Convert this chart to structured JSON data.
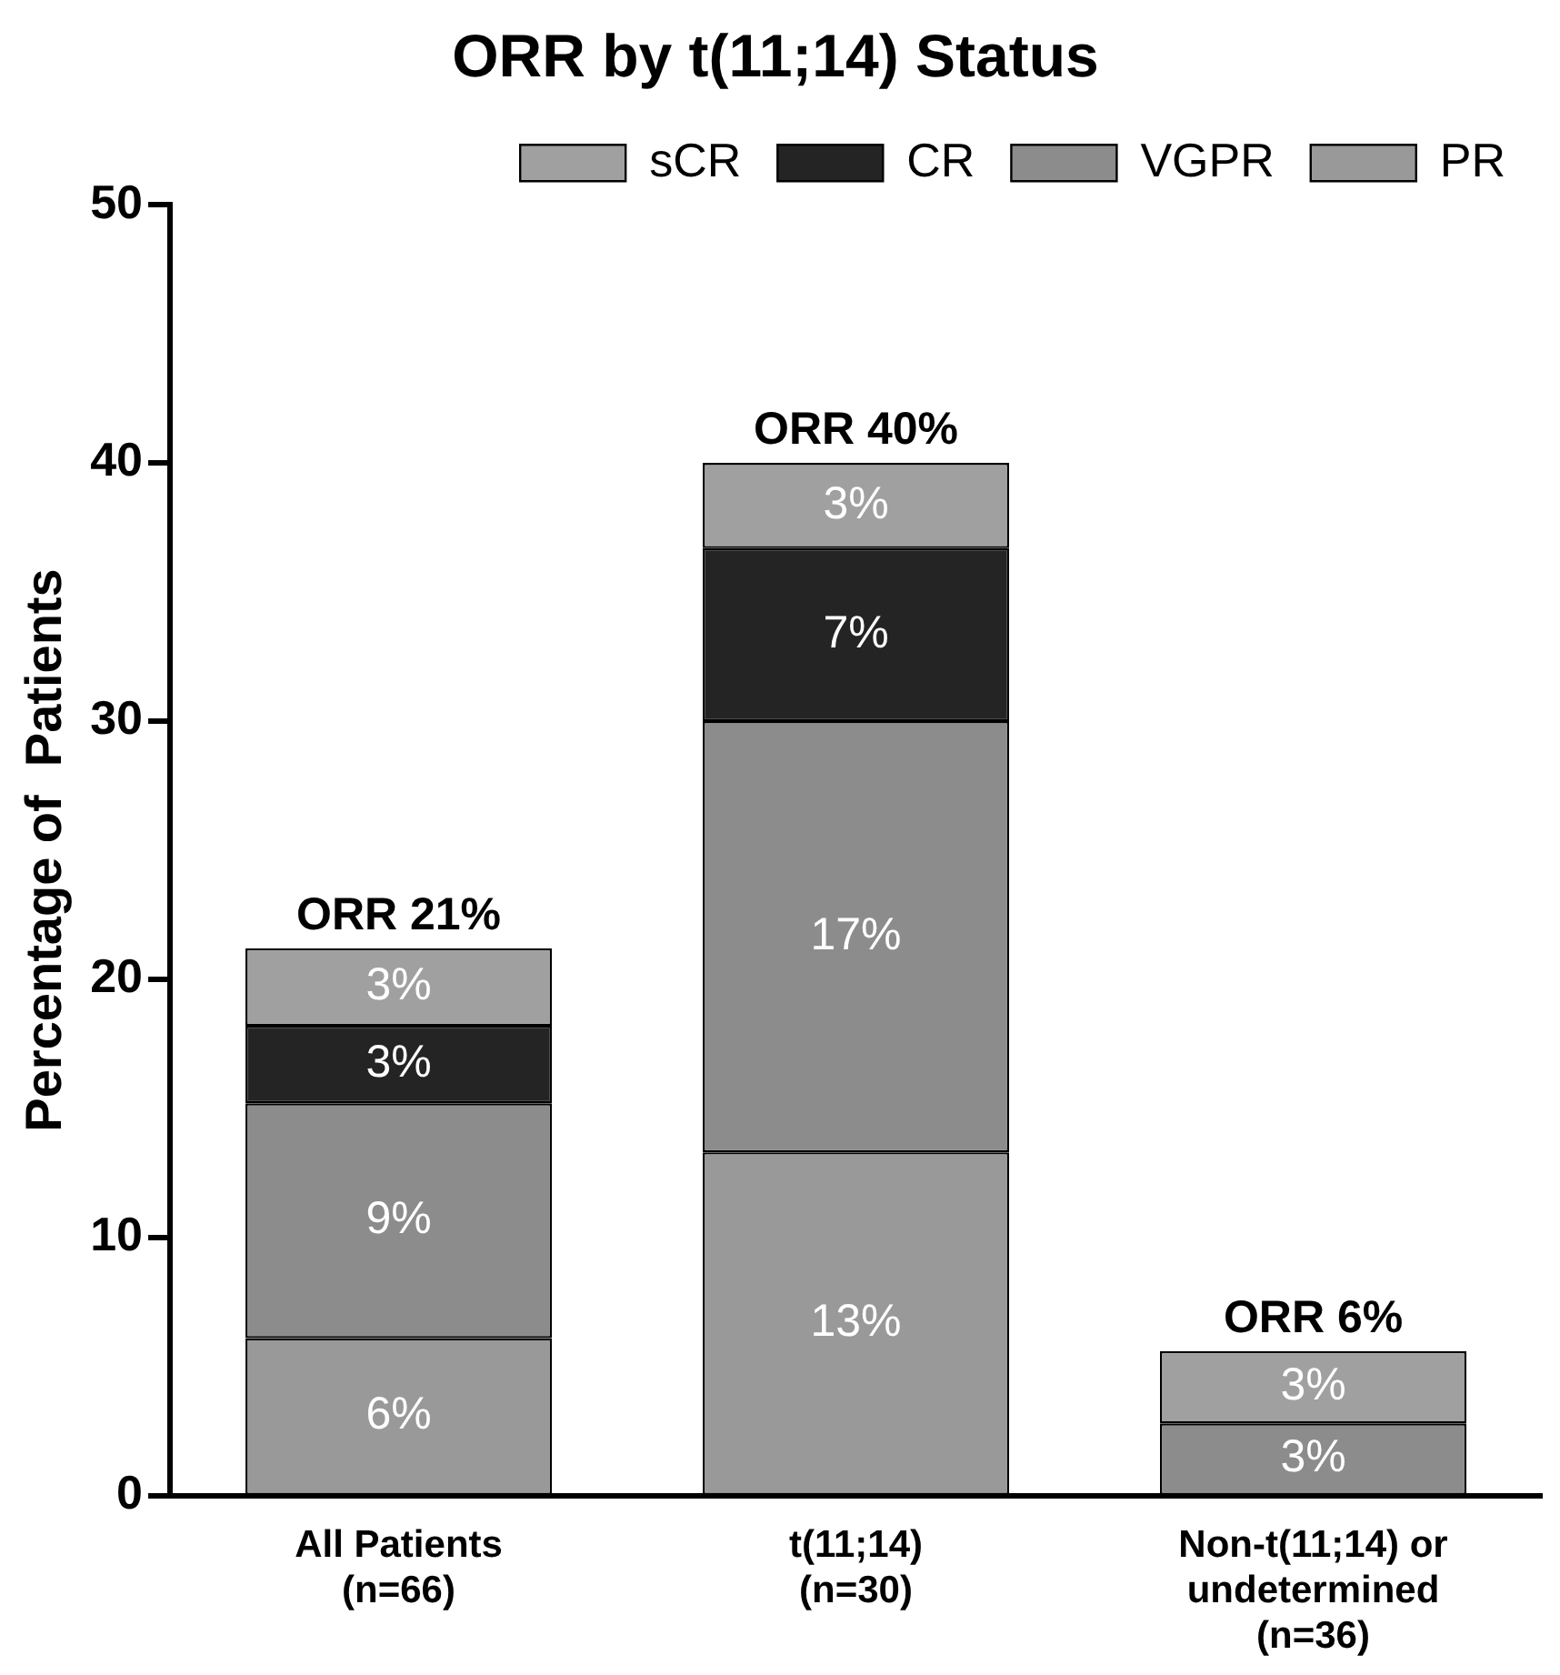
{
  "chart_data": {
    "type": "bar",
    "title": "ORR by t(11;14) Status",
    "ylabel": "Percentage of  Patients",
    "categories": [
      "All Patients\n(n=66)",
      "t(11;14)\n(n=30)",
      "Non-t(11;14) or\nundetermined\n(n=36)"
    ],
    "stacked": true,
    "series": [
      {
        "name": "PR",
        "color": "#999999",
        "values": [
          6.1,
          13.3,
          0
        ],
        "value_labels": [
          "6%",
          "13%",
          null
        ]
      },
      {
        "name": "VGPR",
        "color": "#8c8c8c",
        "values": [
          9.1,
          16.7,
          2.8
        ],
        "value_labels": [
          "9%",
          "17%",
          "3%"
        ]
      },
      {
        "name": "CR",
        "color": "#242424",
        "values": [
          3.0,
          6.7,
          0
        ],
        "value_labels": [
          "3%",
          "7%",
          null
        ]
      },
      {
        "name": "sCR",
        "color": "#a0a0a0",
        "values": [
          3.0,
          3.3,
          2.8
        ],
        "value_labels": [
          "3%",
          "3%",
          "3%"
        ]
      }
    ],
    "totals": [
      "ORR 21%",
      "ORR 40%",
      "ORR 6%"
    ],
    "ylim": [
      0,
      50
    ],
    "yticks": [
      0,
      10,
      20,
      30,
      40,
      50
    ],
    "grid": false,
    "legend": "top"
  }
}
